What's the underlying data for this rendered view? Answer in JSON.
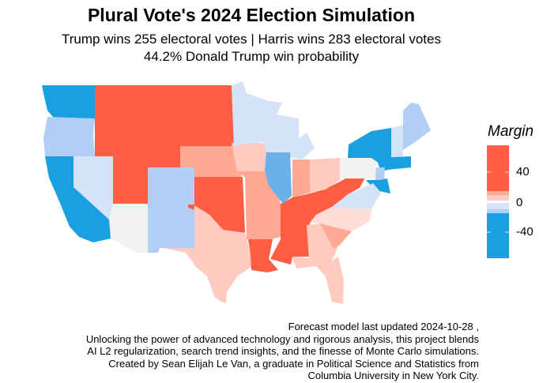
{
  "title": "Plural Vote's 2024 Election Simulation",
  "subtitle_line1": "Trump wins 255 electoral votes | Harris wins 283 electoral votes",
  "subtitle_line2": "44.2% Donald Trump win probability",
  "legend": {
    "title": "Margin",
    "ticks": [
      "40",
      "0",
      "-40"
    ],
    "colors": [
      "#FF5E43",
      "#FFA995",
      "#FFCAC0",
      "#D4E3F8",
      "#B1CFF5",
      "#1AA0E0"
    ]
  },
  "palette": {
    "safe_r": "#FF5E43",
    "likely_r": "#FFA995",
    "lean_r": "#FFCAC0",
    "tilt_r": "#FDDDD6",
    "tossup": "#F2F2F2",
    "tilt_d": "#D4E3F8",
    "lean_d": "#B1CFF5",
    "likely_d": "#6BB0E6",
    "safe_d": "#1AA0E0"
  },
  "caption": [
    "Forecast model last updated 2024-10-28 ,",
    "Unlocking the power of advanced technology and rigorous analysis, this project blends",
    "AI L2 regularization, search trend insights, and the finesse of Monte Carlo simulations.",
    "Created by Sean Elijah Le Van, a graduate in Political Science and Statistics from",
    "Columbia University in New York City."
  ]
}
